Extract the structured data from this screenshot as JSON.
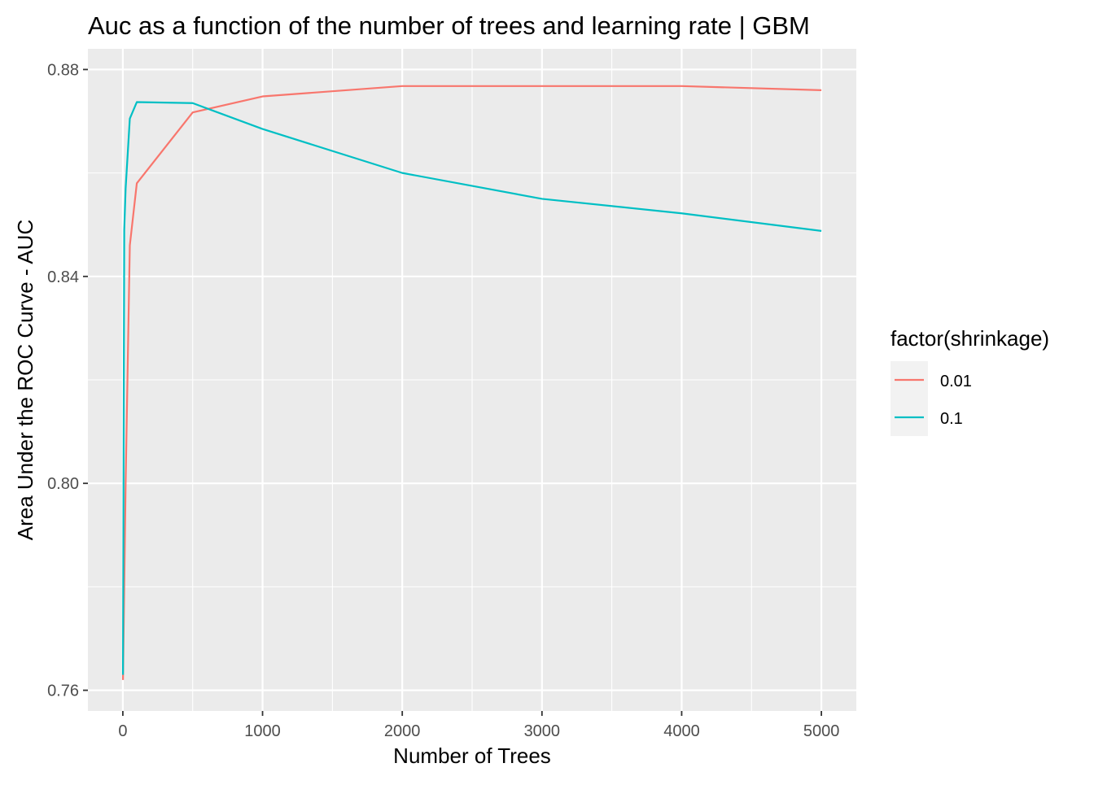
{
  "chart_data": {
    "type": "line",
    "title": "Auc as a function of the number of trees and learning rate | GBM",
    "xlabel": "Number of Trees",
    "ylabel": "Area Under the ROC Curve - AUC",
    "xlim": [
      -250,
      5250
    ],
    "ylim": [
      0.756,
      0.884
    ],
    "x_ticks": [
      0,
      1000,
      2000,
      3000,
      4000,
      5000
    ],
    "x_tick_labels": [
      "0",
      "1000",
      "2000",
      "3000",
      "4000",
      "5000"
    ],
    "y_ticks": [
      0.76,
      0.8,
      0.84,
      0.88
    ],
    "y_tick_labels": [
      "0.76",
      "0.80",
      "0.84",
      "0.88"
    ],
    "grid": true,
    "legend": {
      "title": "factor(shrinkage)",
      "placement": "right"
    },
    "series": [
      {
        "name": "0.01",
        "color": "#F8766D",
        "x": [
          1,
          10,
          20,
          50,
          100,
          500,
          1000,
          2000,
          3000,
          4000,
          5000
        ],
        "y": [
          0.762,
          0.78,
          0.8,
          0.846,
          0.858,
          0.8717,
          0.8748,
          0.8768,
          0.8768,
          0.8768,
          0.876
        ]
      },
      {
        "name": "0.1",
        "color": "#00BFC4",
        "x": [
          1,
          10,
          20,
          50,
          100,
          500,
          1000,
          2000,
          3000,
          4000,
          5000
        ],
        "y": [
          0.763,
          0.849,
          0.857,
          0.8705,
          0.8737,
          0.8735,
          0.8685,
          0.86,
          0.855,
          0.8522,
          0.8488
        ]
      }
    ]
  }
}
